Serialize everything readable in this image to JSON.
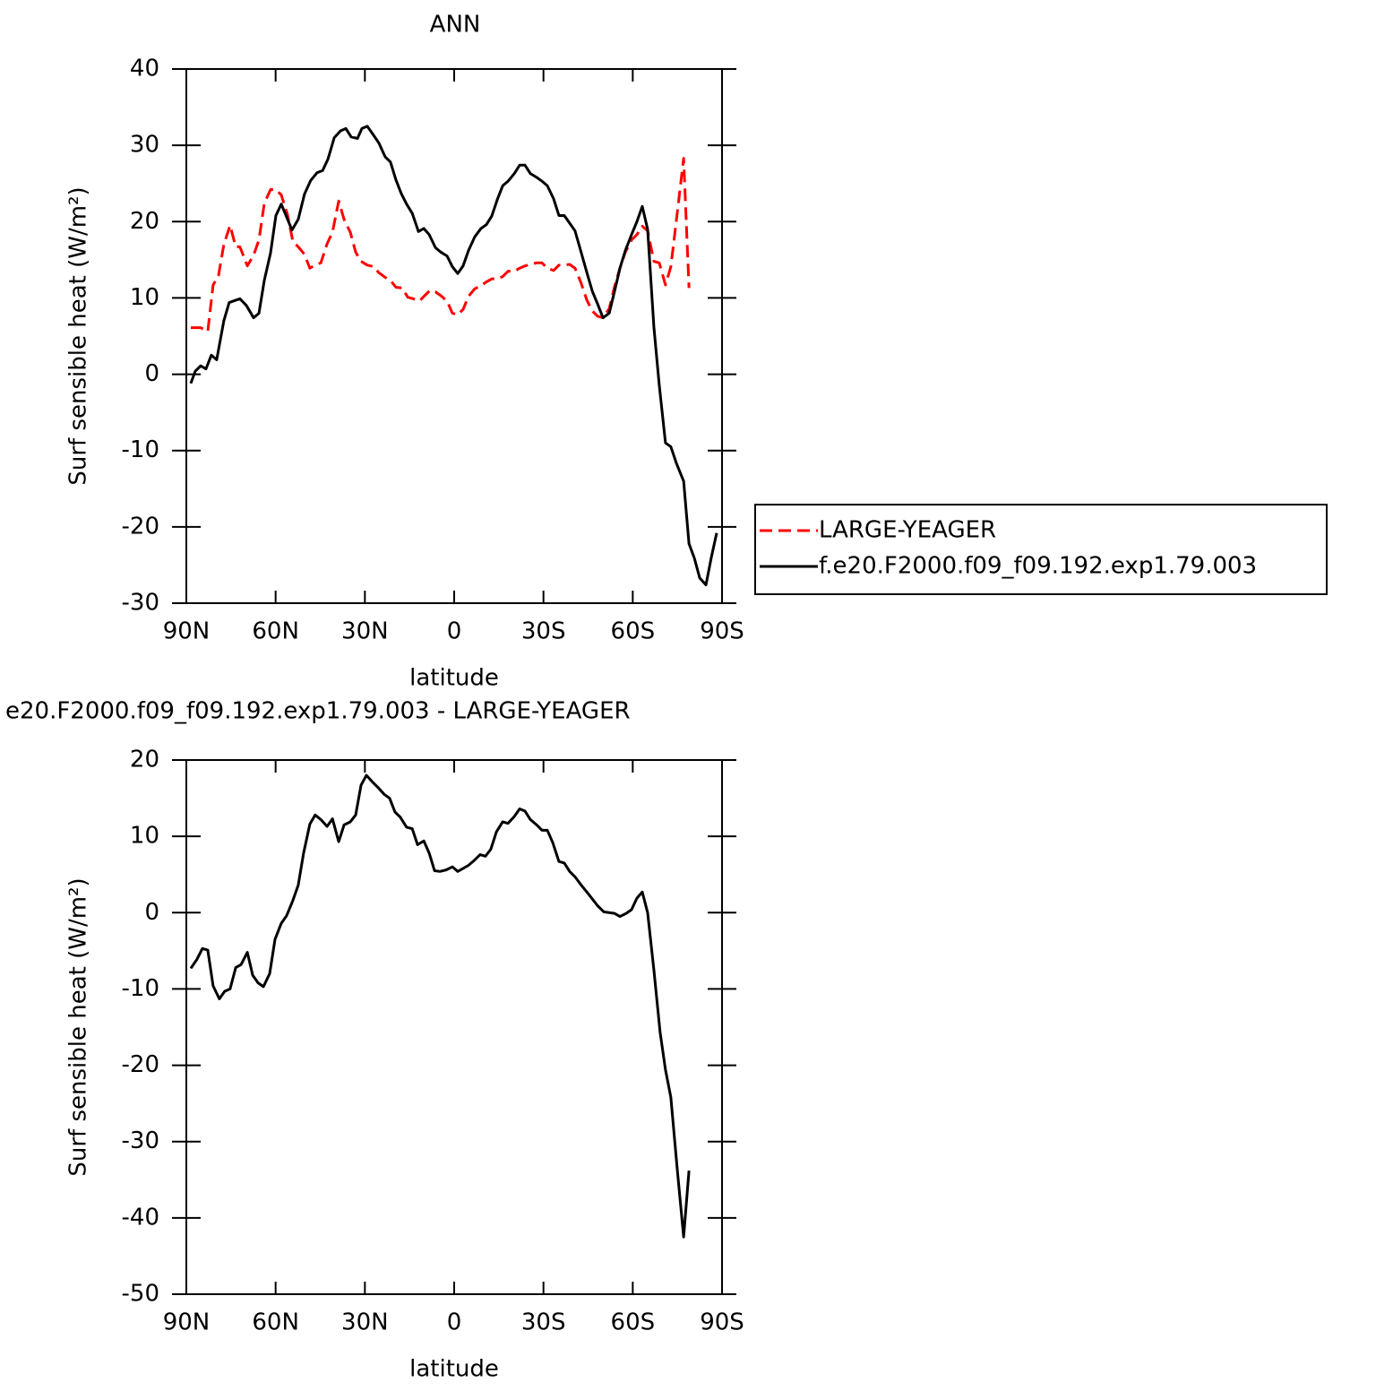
{
  "chart_data": [
    {
      "type": "line",
      "title": "ANN",
      "xlabel": "latitude",
      "ylabel": "Surf sensible heat (W/m²)",
      "xlim": [
        90,
        -90
      ],
      "ylim": [
        -30,
        40
      ],
      "xticks": [
        {
          "value": 90,
          "label": "90N"
        },
        {
          "value": 60,
          "label": "60N"
        },
        {
          "value": 30,
          "label": "30N"
        },
        0,
        {
          "value": -30,
          "label": "30S"
        },
        {
          "value": -60,
          "label": "60S"
        },
        {
          "value": -90,
          "label": "90S"
        }
      ],
      "yticks": [
        -30,
        -20,
        -10,
        0,
        10,
        20,
        30,
        40
      ],
      "legend": "right",
      "series": [
        {
          "name": "LARGE-YEAGER",
          "color": "#ff0000",
          "dash": true,
          "x": [
            88.5,
            85.2,
            82.8,
            81.0,
            79.2,
            77.4,
            75.3,
            73.4,
            72,
            69.5,
            67.4,
            65.6,
            63.8,
            61.7,
            59.9,
            58.1,
            56.0,
            54.2,
            52.4,
            50.3,
            48.5,
            46.7,
            44.8,
            42.7,
            40.9,
            38.8,
            37.0,
            34.9,
            33.1,
            31.3,
            29.2,
            27.1,
            25.3,
            23.2,
            21.4,
            19.6,
            17.5,
            15.6,
            13.8,
            11.7,
            9.9,
            8.1,
            6.3,
            4.5,
            2.4,
            0.6,
            -1.2,
            -3.0,
            -4.8,
            -6.9,
            -9.0,
            -10.8,
            -12.6,
            -14.5,
            -16.3,
            -18.1,
            -20.2,
            -22.0,
            -23.8,
            -25.6,
            -27.7,
            -29.5,
            -31.3,
            -33.4,
            -35.2,
            -37.0,
            -38.8,
            -40.6,
            -42.5,
            -44.6,
            -46.4,
            -48.2,
            -50.0,
            -52.1,
            -53.9,
            -55.7,
            -57.5,
            -59.6,
            -61.4,
            -63.2,
            -65.0,
            -67.1,
            -68.9,
            -71.0,
            -72.8,
            -74.7,
            -77.1,
            -78.9
          ],
          "values": [
            6.1,
            6.1,
            5.6,
            11.7,
            12.9,
            17.0,
            19.5,
            16.7,
            16.7,
            14.2,
            15.6,
            17.6,
            22.4,
            24.2,
            24.2,
            23.5,
            20.9,
            17.4,
            16.7,
            15.7,
            13.9,
            14.3,
            14.6,
            17.1,
            18.6,
            22.7,
            20.3,
            18.6,
            16.0,
            14.8,
            14.3,
            14.1,
            13.3,
            12.7,
            12.3,
            11.4,
            11.3,
            10.1,
            9.9,
            9.6,
            10.3,
            11.0,
            10.8,
            10.3,
            9.6,
            8.0,
            7.8,
            8.5,
            10.2,
            11.2,
            11.6,
            12.1,
            12.5,
            12.5,
            12.8,
            13.5,
            13.5,
            13.9,
            14.2,
            14.4,
            14.6,
            14.6,
            13.9,
            13.6,
            14.3,
            14.3,
            14.4,
            13.9,
            12.1,
            9.7,
            8.3,
            7.6,
            7.4,
            8.6,
            11.5,
            13.9,
            16.0,
            17.6,
            18.3,
            19.4,
            18.8,
            14.8,
            14.6,
            11.7,
            14.1,
            20.3,
            28.3,
            11.3
          ]
        },
        {
          "name": "f.e20.F2000.f09_f09.192.exp1.79.003",
          "color": "#000000",
          "dash": false,
          "x": [
            88.5,
            87,
            85.2,
            83.4,
            81.6,
            79.8,
            77.4,
            75.6,
            72,
            69.8,
            67.4,
            65.6,
            63.8,
            61.7,
            59.9,
            58.1,
            56.3,
            54.5,
            52.4,
            50.3,
            48.2,
            46.1,
            44.2,
            42.4,
            40.3,
            38.2,
            36.4,
            34.6,
            32.5,
            31,
            29.2,
            27.4,
            25.3,
            23.2,
            21.4,
            19.6,
            17.8,
            16,
            14.1,
            12.0,
            10.2,
            8.4,
            6.3,
            4.5,
            2.4,
            0.6,
            -1.2,
            -3.0,
            -4.8,
            -6.9,
            -9.0,
            -10.8,
            -12.6,
            -14.5,
            -16.3,
            -18.1,
            -20.2,
            -22.0,
            -23.8,
            -25.6,
            -27.7,
            -29.5,
            -31.3,
            -33.4,
            -35.2,
            -37.0,
            -38.8,
            -40.6,
            -42.5,
            -44.6,
            -46.4,
            -48.2,
            -50.0,
            -52.1,
            -53.9,
            -55.7,
            -57.5,
            -59.6,
            -61.4,
            -63.2,
            -65.0,
            -67.1,
            -68.9,
            -71.0,
            -72.8,
            -74.7,
            -77.1,
            -78.9,
            -80.7,
            -82.5,
            -84.6,
            -86.4,
            -88.2
          ],
          "values": [
            -1.2,
            0.4,
            1.1,
            0.7,
            2.5,
            1.9,
            7.0,
            9.4,
            9.9,
            9.0,
            7.4,
            8.0,
            12.3,
            15.9,
            20.8,
            22.3,
            20.6,
            18.9,
            20.3,
            23.6,
            25.4,
            26.4,
            26.7,
            28.2,
            31.0,
            31.9,
            32.2,
            31.1,
            30.9,
            32.2,
            32.5,
            31.5,
            30.3,
            28.5,
            27.8,
            25.5,
            23.7,
            22.3,
            21.1,
            18.7,
            19.1,
            18.3,
            16.6,
            16.0,
            15.5,
            14.1,
            13.2,
            14.2,
            16.2,
            18.0,
            19.1,
            19.6,
            20.7,
            22.9,
            24.7,
            25.3,
            26.3,
            27.4,
            27.4,
            26.3,
            25.8,
            25.3,
            24.7,
            23.0,
            20.8,
            20.8,
            19.8,
            18.8,
            16.2,
            13.3,
            10.9,
            9.2,
            7.4,
            8.0,
            10.9,
            13.9,
            16.2,
            18.3,
            20.0,
            22.0,
            19.0,
            6.2,
            -1.4,
            -9.0,
            -9.5,
            -11.7,
            -14.0,
            -22.2,
            -24.1,
            -26.7,
            -27.6,
            -24.0,
            -20.8
          ]
        }
      ]
    },
    {
      "type": "line",
      "title": "e20.F2000.f09_f09.192.exp1.79.003 - LARGE-YEAGER",
      "xlabel": "latitude",
      "ylabel": "Surf sensible heat (W/m²)",
      "xlim": [
        90,
        -90
      ],
      "ylim": [
        -50,
        20
      ],
      "xticks": [
        {
          "value": 90,
          "label": "90N"
        },
        {
          "value": 60,
          "label": "60N"
        },
        {
          "value": 30,
          "label": "30N"
        },
        0,
        {
          "value": -30,
          "label": "30S"
        },
        {
          "value": -60,
          "label": "60S"
        },
        {
          "value": -90,
          "label": "90S"
        }
      ],
      "yticks": [
        -50,
        -40,
        -30,
        -20,
        -10,
        0,
        10,
        20
      ],
      "series": [
        {
          "color": "#000000",
          "dash": false,
          "x": [
            88.5,
            86.4,
            84.6,
            82.8,
            81.0,
            78.9,
            77.1,
            75.3,
            73.4,
            71.6,
            69.5,
            67.7,
            65.9,
            64.1,
            62.0,
            60.2,
            58.1,
            56.3,
            54.2,
            52.4,
            50.6,
            48.5,
            46.7,
            44.8,
            42.7,
            40.9,
            38.8,
            37.0,
            34.9,
            33.1,
            31.3,
            29.5,
            27.4,
            25.6,
            23.5,
            21.7,
            19.9,
            18.1,
            16.0,
            14.1,
            12.3,
            10.2,
            8.4,
            6.6,
            4.8,
            2.7,
            0.6,
            -1.2,
            -3.0,
            -4.8,
            -6.6,
            -8.7,
            -10.5,
            -12.3,
            -14.2,
            -16.3,
            -18.1,
            -20.2,
            -22.0,
            -23.8,
            -25.6,
            -27.7,
            -29.5,
            -31.3,
            -33.1,
            -35.2,
            -37.0,
            -38.8,
            -40.6,
            -42.7,
            -44.6,
            -46.4,
            -48.2,
            -50.3,
            -52.1,
            -53.9,
            -55.7,
            -57.8,
            -59.6,
            -61.4,
            -63.2,
            -65.0,
            -67.1,
            -69.2,
            -71.0,
            -72.8,
            -74.9,
            -77.1,
            -78.9
          ],
          "values": [
            -7.3,
            -6.1,
            -4.7,
            -4.9,
            -9.6,
            -11.3,
            -10.3,
            -10.0,
            -7.2,
            -6.8,
            -5.2,
            -8.2,
            -9.2,
            -9.7,
            -8.0,
            -3.5,
            -1.4,
            -0.4,
            1.6,
            3.6,
            7.8,
            11.6,
            12.8,
            12.2,
            11.3,
            12.3,
            9.3,
            11.5,
            11.9,
            12.8,
            16.7,
            18.0,
            17.1,
            16.4,
            15.5,
            15.0,
            13.2,
            12.5,
            11.2,
            11.0,
            8.9,
            9.4,
            7.8,
            5.5,
            5.4,
            5.6,
            6.0,
            5.4,
            5.8,
            6.2,
            6.8,
            7.6,
            7.4,
            8.3,
            10.6,
            11.9,
            11.7,
            12.6,
            13.6,
            13.3,
            12.2,
            11.5,
            10.8,
            10.8,
            9.2,
            6.7,
            6.5,
            5.4,
            4.7,
            3.6,
            2.7,
            1.8,
            0.9,
            0.1,
            0.0,
            -0.1,
            -0.5,
            -0.1,
            0.4,
            1.9,
            2.7,
            0.0,
            -7.5,
            -15.7,
            -20.6,
            -24.2,
            -33.4,
            -42.5,
            -33.8
          ]
        }
      ]
    }
  ]
}
